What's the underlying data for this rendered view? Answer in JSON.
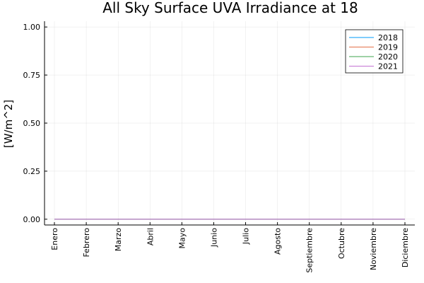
{
  "chart_data": {
    "type": "line",
    "title": "All Sky Surface UVA Irradiance at 18",
    "y_label": "[W/m^2]",
    "categories": [
      "Enero",
      "Febrero",
      "Marzo",
      "Abril",
      "Mayo",
      "Junio",
      "Julio",
      "Agosto",
      "Septiembre",
      "Octubre",
      "Noviembre",
      "Diciembre"
    ],
    "series": [
      {
        "name": "2018",
        "color": "#009afa",
        "values": [
          0,
          0,
          0,
          0,
          0,
          0,
          0,
          0,
          0,
          0,
          0,
          0
        ]
      },
      {
        "name": "2019",
        "color": "#e36f47",
        "values": [
          0,
          0,
          0,
          0,
          0,
          0,
          0,
          0,
          0,
          0,
          0,
          0
        ]
      },
      {
        "name": "2020",
        "color": "#3ea44e",
        "values": [
          0,
          0,
          0,
          0,
          0,
          0,
          0,
          0,
          0,
          0,
          0,
          0
        ]
      },
      {
        "name": "2021",
        "color": "#c371d2",
        "values": [
          0,
          0,
          0,
          0,
          0,
          0,
          0,
          0,
          0,
          0,
          0,
          0
        ]
      }
    ],
    "ylim": [
      -0.03,
      1.03
    ],
    "yticks": [
      {
        "value": 0,
        "label": "0.00"
      },
      0.25,
      {
        "value": 0.5,
        "label": "0.50"
      },
      0.75,
      {
        "value": 1,
        "label": "1.00"
      }
    ],
    "grid": true,
    "legend": "top-right"
  }
}
